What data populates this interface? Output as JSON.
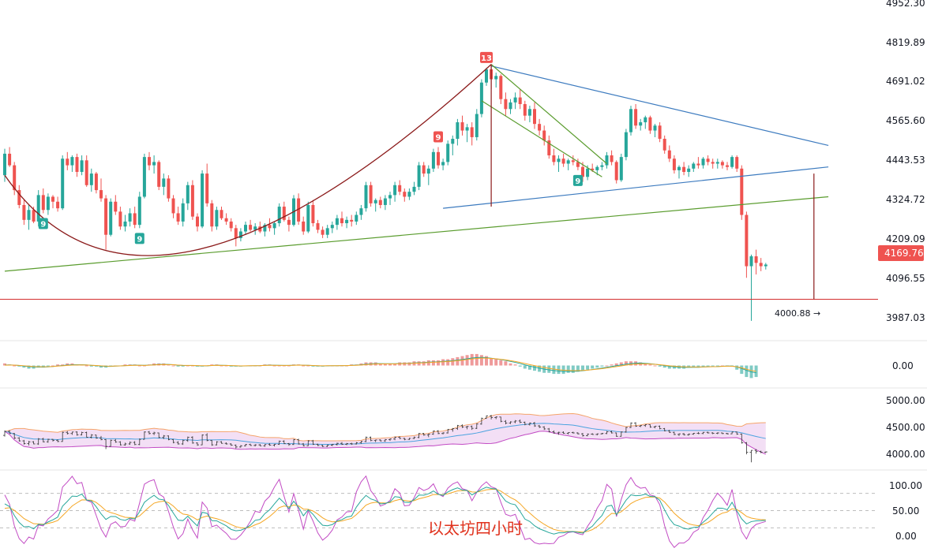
{
  "chart_data": {
    "type": "candlestick",
    "title": "以太坊四小时",
    "symbol": "ETH",
    "timeframe": "4H",
    "last_price": "4169.76",
    "last_price_color": "#ef5350",
    "up_color": "#26a69a",
    "down_color": "#ef5350",
    "grid": false,
    "price_axis": {
      "ticks": [
        "4952.30",
        "4819.89",
        "4691.02",
        "4565.60",
        "4443.53",
        "4324.72",
        "4209.09",
        "4096.55",
        "3987.03"
      ],
      "range": [
        3940,
        4960
      ]
    },
    "low_annotation": {
      "text": "4000.88 →",
      "value": 4000.88
    },
    "support_level": 4065,
    "td_sequential_labels": [
      {
        "text": "9",
        "kind": "buy",
        "bar": 8
      },
      {
        "text": "9",
        "kind": "buy",
        "bar": 28
      },
      {
        "text": "9",
        "kind": "sell",
        "bar": 90
      },
      {
        "text": "13",
        "kind": "sell",
        "bar": 100
      },
      {
        "text": "9",
        "kind": "buy",
        "bar": 119
      }
    ],
    "candles": [
      [
        4440,
        4520,
        4420,
        4505
      ],
      [
        4505,
        4525,
        4465,
        4470
      ],
      [
        4470,
        4480,
        4380,
        4395
      ],
      [
        4395,
        4410,
        4340,
        4350
      ],
      [
        4350,
        4365,
        4290,
        4305
      ],
      [
        4305,
        4350,
        4275,
        4335
      ],
      [
        4335,
        4345,
        4295,
        4300
      ],
      [
        4300,
        4395,
        4285,
        4380
      ],
      [
        4380,
        4400,
        4325,
        4335
      ],
      [
        4335,
        4385,
        4320,
        4375
      ],
      [
        4375,
        4380,
        4340,
        4360
      ],
      [
        4360,
        4375,
        4330,
        4340
      ],
      [
        4340,
        4500,
        4335,
        4490
      ],
      [
        4490,
        4510,
        4455,
        4470
      ],
      [
        4470,
        4500,
        4450,
        4495
      ],
      [
        4495,
        4505,
        4435,
        4450
      ],
      [
        4450,
        4500,
        4440,
        4485
      ],
      [
        4485,
        4500,
        4405,
        4410
      ],
      [
        4410,
        4460,
        4390,
        4445
      ],
      [
        4445,
        4450,
        4385,
        4395
      ],
      [
        4395,
        4430,
        4360,
        4370
      ],
      [
        4370,
        4380,
        4215,
        4260
      ],
      [
        4260,
        4370,
        4255,
        4360
      ],
      [
        4360,
        4380,
        4320,
        4330
      ],
      [
        4330,
        4345,
        4275,
        4285
      ],
      [
        4285,
        4320,
        4270,
        4300
      ],
      [
        4300,
        4340,
        4285,
        4325
      ],
      [
        4325,
        4345,
        4280,
        4290
      ],
      [
        4290,
        4390,
        4280,
        4375
      ],
      [
        4375,
        4505,
        4370,
        4495
      ],
      [
        4495,
        4510,
        4455,
        4470
      ],
      [
        4470,
        4500,
        4445,
        4480
      ],
      [
        4480,
        4485,
        4395,
        4405
      ],
      [
        4405,
        4445,
        4380,
        4430
      ],
      [
        4430,
        4440,
        4360,
        4370
      ],
      [
        4370,
        4380,
        4310,
        4325
      ],
      [
        4325,
        4345,
        4290,
        4300
      ],
      [
        4300,
        4370,
        4285,
        4355
      ],
      [
        4355,
        4420,
        4335,
        4410
      ],
      [
        4410,
        4425,
        4305,
        4315
      ],
      [
        4315,
        4325,
        4270,
        4285
      ],
      [
        4285,
        4455,
        4280,
        4445
      ],
      [
        4445,
        4475,
        4345,
        4355
      ],
      [
        4355,
        4365,
        4270,
        4285
      ],
      [
        4285,
        4345,
        4275,
        4335
      ],
      [
        4335,
        4345,
        4305,
        4310
      ],
      [
        4310,
        4325,
        4290,
        4300
      ],
      [
        4300,
        4310,
        4270,
        4280
      ],
      [
        4280,
        4290,
        4225,
        4250
      ],
      [
        4250,
        4280,
        4240,
        4270
      ],
      [
        4270,
        4300,
        4260,
        4290
      ],
      [
        4290,
        4305,
        4270,
        4275
      ],
      [
        4275,
        4295,
        4260,
        4285
      ],
      [
        4285,
        4300,
        4265,
        4270
      ],
      [
        4270,
        4295,
        4255,
        4290
      ],
      [
        4290,
        4310,
        4270,
        4280
      ],
      [
        4280,
        4300,
        4260,
        4295
      ],
      [
        4295,
        4355,
        4285,
        4345
      ],
      [
        4345,
        4360,
        4300,
        4305
      ],
      [
        4305,
        4315,
        4270,
        4290
      ],
      [
        4290,
        4380,
        4285,
        4370
      ],
      [
        4370,
        4385,
        4290,
        4300
      ],
      [
        4300,
        4315,
        4260,
        4270
      ],
      [
        4270,
        4360,
        4265,
        4350
      ],
      [
        4350,
        4365,
        4285,
        4295
      ],
      [
        4295,
        4305,
        4265,
        4275
      ],
      [
        4275,
        4285,
        4250,
        4260
      ],
      [
        4260,
        4290,
        4250,
        4280
      ],
      [
        4280,
        4300,
        4265,
        4290
      ],
      [
        4290,
        4320,
        4275,
        4310
      ],
      [
        4310,
        4330,
        4285,
        4295
      ],
      [
        4295,
        4315,
        4280,
        4305
      ],
      [
        4305,
        4320,
        4285,
        4300
      ],
      [
        4300,
        4330,
        4290,
        4320
      ],
      [
        4320,
        4350,
        4305,
        4340
      ],
      [
        4340,
        4420,
        4330,
        4410
      ],
      [
        4410,
        4420,
        4345,
        4355
      ],
      [
        4355,
        4370,
        4330,
        4365
      ],
      [
        4365,
        4375,
        4340,
        4350
      ],
      [
        4350,
        4380,
        4335,
        4370
      ],
      [
        4370,
        4390,
        4350,
        4380
      ],
      [
        4380,
        4420,
        4360,
        4410
      ],
      [
        4410,
        4425,
        4380,
        4390
      ],
      [
        4390,
        4400,
        4360,
        4375
      ],
      [
        4375,
        4400,
        4365,
        4390
      ],
      [
        4390,
        4420,
        4380,
        4405
      ],
      [
        4405,
        4480,
        4395,
        4470
      ],
      [
        4470,
        4480,
        4435,
        4445
      ],
      [
        4445,
        4470,
        4410,
        4460
      ],
      [
        4460,
        4520,
        4450,
        4510
      ],
      [
        4510,
        4525,
        4460,
        4470
      ],
      [
        4470,
        4490,
        4455,
        4480
      ],
      [
        4480,
        4545,
        4470,
        4535
      ],
      [
        4535,
        4560,
        4500,
        4550
      ],
      [
        4550,
        4610,
        4530,
        4600
      ],
      [
        4600,
        4620,
        4560,
        4575
      ],
      [
        4575,
        4595,
        4540,
        4585
      ],
      [
        4585,
        4600,
        4530,
        4555
      ],
      [
        4555,
        4640,
        4545,
        4625
      ],
      [
        4625,
        4730,
        4615,
        4720
      ],
      [
        4720,
        4765,
        4710,
        4760
      ],
      [
        4760,
        4775,
        4700,
        4730
      ],
      [
        4730,
        4750,
        4705,
        4740
      ],
      [
        4740,
        4745,
        4655,
        4670
      ],
      [
        4670,
        4690,
        4620,
        4640
      ],
      [
        4640,
        4670,
        4625,
        4660
      ],
      [
        4660,
        4690,
        4640,
        4675
      ],
      [
        4675,
        4700,
        4640,
        4655
      ],
      [
        4655,
        4665,
        4605,
        4620
      ],
      [
        4620,
        4650,
        4600,
        4640
      ],
      [
        4640,
        4660,
        4580,
        4595
      ],
      [
        4595,
        4610,
        4560,
        4575
      ],
      [
        4575,
        4590,
        4530,
        4545
      ],
      [
        4545,
        4560,
        4490,
        4500
      ],
      [
        4500,
        4520,
        4470,
        4480
      ],
      [
        4480,
        4500,
        4450,
        4490
      ],
      [
        4490,
        4505,
        4465,
        4475
      ],
      [
        4475,
        4490,
        4455,
        4485
      ],
      [
        4485,
        4500,
        4470,
        4480
      ],
      [
        4480,
        4490,
        4455,
        4465
      ],
      [
        4465,
        4480,
        4420,
        4435
      ],
      [
        4435,
        4470,
        4425,
        4460
      ],
      [
        4460,
        4475,
        4450,
        4455
      ],
      [
        4455,
        4470,
        4440,
        4465
      ],
      [
        4465,
        4480,
        4455,
        4470
      ],
      [
        4470,
        4510,
        4460,
        4500
      ],
      [
        4500,
        4515,
        4470,
        4480
      ],
      [
        4480,
        4485,
        4415,
        4425
      ],
      [
        4425,
        4505,
        4420,
        4495
      ],
      [
        4495,
        4580,
        4485,
        4570
      ],
      [
        4570,
        4650,
        4560,
        4640
      ],
      [
        4640,
        4655,
        4580,
        4590
      ],
      [
        4590,
        4610,
        4575,
        4600
      ],
      [
        4600,
        4620,
        4580,
        4615
      ],
      [
        4615,
        4620,
        4565,
        4575
      ],
      [
        4575,
        4595,
        4555,
        4590
      ],
      [
        4590,
        4600,
        4540,
        4550
      ],
      [
        4550,
        4560,
        4505,
        4515
      ],
      [
        4515,
        4530,
        4480,
        4490
      ],
      [
        4490,
        4500,
        4445,
        4455
      ],
      [
        4455,
        4470,
        4430,
        4465
      ],
      [
        4465,
        4480,
        4440,
        4450
      ],
      [
        4450,
        4470,
        4435,
        4460
      ],
      [
        4460,
        4480,
        4450,
        4475
      ],
      [
        4475,
        4495,
        4460,
        4470
      ],
      [
        4470,
        4495,
        4460,
        4490
      ],
      [
        4490,
        4500,
        4470,
        4480
      ],
      [
        4480,
        4490,
        4460,
        4475
      ],
      [
        4475,
        4490,
        4460,
        4480
      ],
      [
        4480,
        4485,
        4460,
        4470
      ],
      [
        4470,
        4480,
        4455,
        4465
      ],
      [
        4465,
        4500,
        4460,
        4495
      ],
      [
        4495,
        4500,
        4450,
        4460
      ],
      [
        4460,
        4470,
        4305,
        4320
      ],
      [
        4320,
        4330,
        4130,
        4165
      ],
      [
        4165,
        4200,
        4000,
        4195
      ],
      [
        4195,
        4215,
        4140,
        4175
      ],
      [
        4175,
        4190,
        4150,
        4165
      ],
      [
        4165,
        4175,
        4155,
        4170
      ]
    ],
    "trend_lines": [
      {
        "name": "",
        "color": "#3d7bbf",
        "from": [
          101,
          4770
        ],
        "to": [
          171,
          4530
        ]
      },
      {
        "name": "",
        "color": "#3d7bbf",
        "from": [
          91,
          4340
        ],
        "to": [
          171,
          4465
        ]
      },
      {
        "name": "",
        "color": "#5a9c2e",
        "from": [
          0,
          4150
        ],
        "to": [
          171,
          4375
        ]
      },
      {
        "name": "",
        "color": "#5a9c2e",
        "from": [
          101,
          4775
        ],
        "to": [
          125,
          4475
        ]
      },
      {
        "name": "",
        "color": "#5a9c2e",
        "from": [
          99,
          4665
        ],
        "to": [
          124,
          4435
        ]
      }
    ],
    "rounding_arc": {
      "color": "#8b1a1a",
      "from": [
        0,
        4440
      ],
      "mid": [
        40,
        4215
      ],
      "to": [
        101,
        4775
      ]
    },
    "vertical_markers": [
      {
        "bar": 101,
        "from": 4345,
        "to": 4775,
        "color": "#8b1a1a"
      },
      {
        "bar": 168,
        "from": 4065,
        "to": 4445,
        "color": "#8b1a1a"
      }
    ],
    "macd": {
      "tick": "0.00",
      "hist": [
        2,
        1,
        0,
        -1,
        -2,
        -3,
        -3,
        -2,
        -2,
        -1,
        0,
        1,
        1,
        2,
        2,
        1,
        1,
        0,
        -1,
        -1,
        -2,
        -2,
        -1,
        0,
        0,
        1,
        1,
        1,
        0,
        0,
        1,
        2,
        2,
        2,
        1,
        0,
        -1,
        -1,
        0,
        0,
        -1,
        -1,
        0,
        1,
        1,
        0,
        0,
        -1,
        -1,
        -1,
        0,
        0,
        0,
        0,
        1,
        1,
        0,
        0,
        0,
        0,
        1,
        1,
        0,
        0,
        -1,
        -1,
        -1,
        0,
        0,
        0,
        0,
        0,
        1,
        1,
        2,
        3,
        3,
        3,
        2,
        2,
        2,
        2,
        3,
        3,
        3,
        4,
        4,
        4,
        5,
        5,
        5,
        6,
        6,
        7,
        8,
        9,
        10,
        11,
        11,
        10,
        9,
        7,
        6,
        5,
        4,
        2,
        1,
        -1,
        -3,
        -4,
        -5,
        -6,
        -7,
        -7,
        -8,
        -8,
        -8,
        -7,
        -7,
        -6,
        -5,
        -4,
        -3,
        -2,
        -1,
        0,
        1,
        2,
        3,
        4,
        4,
        4,
        3,
        2,
        1,
        0,
        -1,
        -2,
        -3,
        -3,
        -3,
        -3,
        -2,
        -2,
        -2,
        -1,
        -1,
        -1,
        -1,
        0,
        0,
        -1,
        -4,
        -8,
        -11,
        -12,
        -11
      ],
      "range": [
        -20,
        20
      ]
    },
    "bollinger": {
      "ticks": [
        "5000.00",
        "4500.00",
        "4000.00"
      ],
      "range": [
        3900,
        5150
      ]
    },
    "kdj": {
      "ticks": [
        "100.00",
        "50.00",
        "0.00"
      ],
      "range": [
        -15,
        115
      ],
      "levels": [
        20,
        50,
        80
      ]
    }
  }
}
